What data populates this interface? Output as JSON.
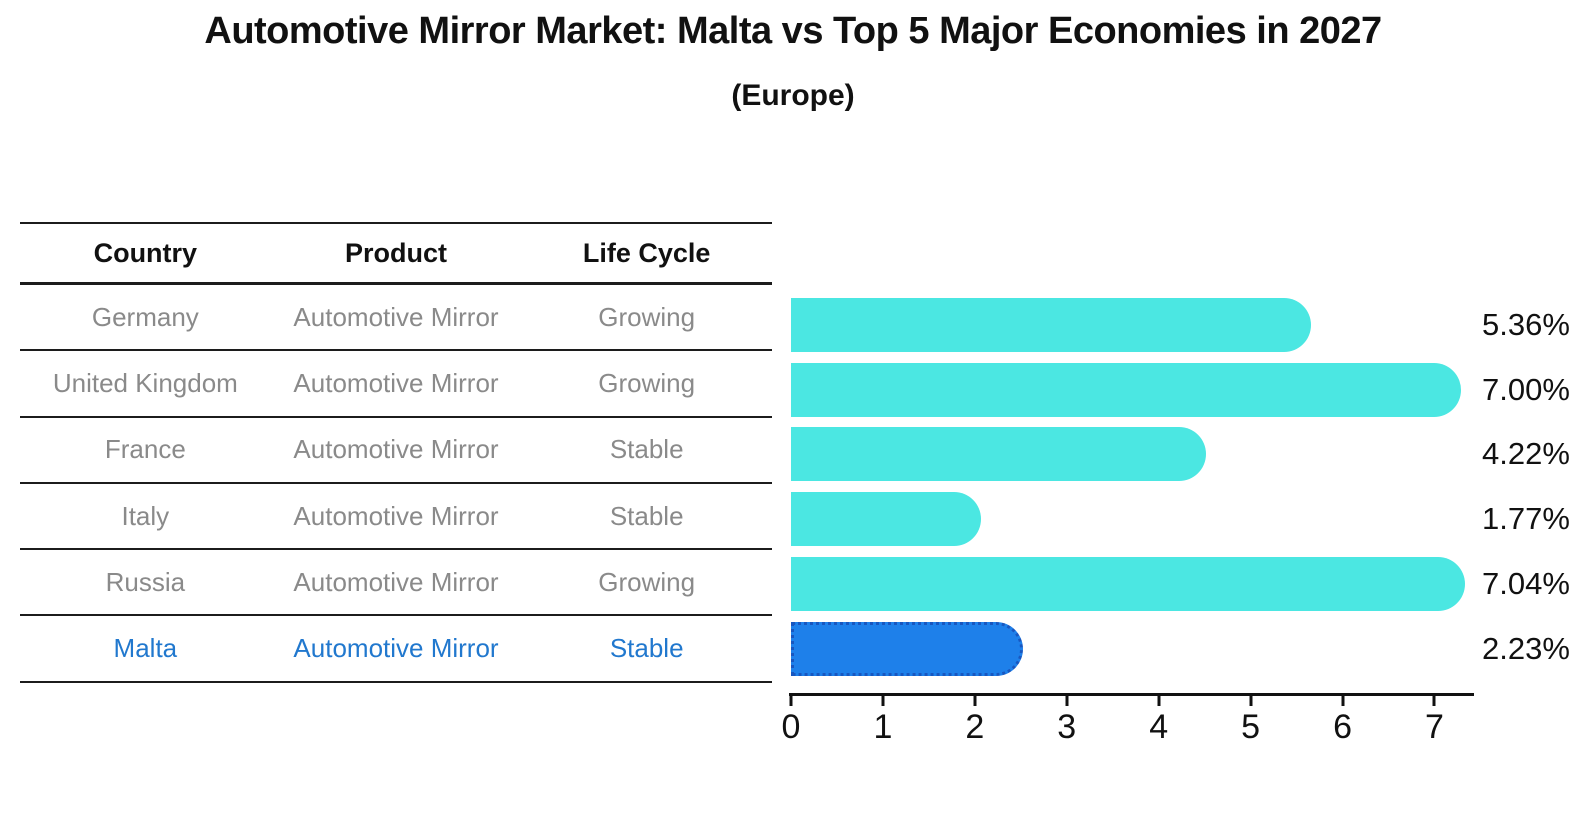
{
  "title": "Automotive Mirror Market: Malta vs Top 5 Major Economies in 2027",
  "subtitle": "(Europe)",
  "table": {
    "headers": [
      "Country",
      "Product",
      "Life Cycle"
    ],
    "rows": [
      {
        "country": "Germany",
        "product": "Automotive Mirror",
        "life_cycle": "Growing",
        "highlighted": false
      },
      {
        "country": "United Kingdom",
        "product": "Automotive Mirror",
        "life_cycle": "Growing",
        "highlighted": false
      },
      {
        "country": "France",
        "product": "Automotive Mirror",
        "life_cycle": "Stable",
        "highlighted": false
      },
      {
        "country": "Italy",
        "product": "Automotive Mirror",
        "life_cycle": "Stable",
        "highlighted": false
      },
      {
        "country": "Russia",
        "product": "Automotive Mirror",
        "life_cycle": "Growing",
        "highlighted": false
      },
      {
        "country": "Malta",
        "product": "Automotive Mirror",
        "life_cycle": "Stable",
        "highlighted": true
      }
    ]
  },
  "chart_data": {
    "type": "bar",
    "orientation": "horizontal",
    "categories": [
      "Germany",
      "United Kingdom",
      "France",
      "Italy",
      "Russia",
      "Malta"
    ],
    "values": [
      5.36,
      7.0,
      4.22,
      1.77,
      7.04,
      2.23
    ],
    "value_labels": [
      "5.36%",
      "7.00%",
      "4.22%",
      "1.77%",
      "7.04%",
      "2.23%"
    ],
    "xticks": [
      0,
      1,
      2,
      3,
      4,
      5,
      6,
      7
    ],
    "xlim": [
      0,
      7.43
    ],
    "grid": false,
    "legend": false,
    "highlight_index": 5,
    "colors": {
      "bar": "#4BE7E2",
      "highlight_bar": "#1E80EA",
      "highlight_border": "#1857C0",
      "axis": "#111111",
      "value_label": "#111111"
    }
  },
  "colors": {
    "background": "#FFFFFF",
    "table_line": "#1C1C1C",
    "header_text": "#111111",
    "row_text": "#8A8A8A",
    "highlight_text": "#2178CE"
  }
}
